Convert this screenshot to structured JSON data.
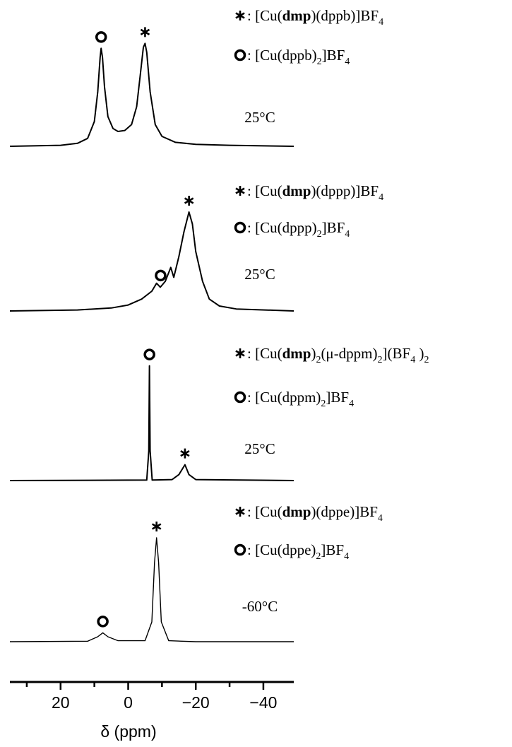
{
  "chart_data": {
    "type": "line",
    "xlabel": "δ (ppm)",
    "xlim": [
      35,
      -49
    ],
    "xticks": [
      20,
      0,
      {
        "value": -20,
        "label": "−20"
      },
      {
        "value": -40,
        "label": "−40"
      }
    ],
    "xminor_ticks": [
      30,
      10,
      -10,
      -30
    ],
    "color": "#000000",
    "series": [
      {
        "temperature": "25°C",
        "x": [
          35,
          20,
          15,
          12,
          10,
          9,
          8.3,
          8,
          7.6,
          7,
          6,
          4.5,
          3,
          1,
          -1,
          -2.5,
          -3.5,
          -4.5,
          -5,
          -5.5,
          -6.5,
          -8,
          -10,
          -14,
          -20,
          -30,
          -49
        ],
        "values": [
          0,
          1,
          3,
          8,
          25,
          55,
          90,
          99,
          90,
          60,
          30,
          18,
          15,
          16,
          22,
          40,
          70,
          100,
          104,
          95,
          55,
          22,
          10,
          4,
          2,
          1,
          0
        ],
        "species": [
          {
            "marker": "asterisk",
            "peak_x": -5,
            "label": [
              {
                "t": ": [Cu("
              },
              {
                "t": "dmp",
                "s": "b"
              },
              {
                "t": ")(dppb)]BF"
              },
              {
                "t": "4",
                "s": "sub"
              }
            ]
          },
          {
            "marker": "circle",
            "peak_x": 8,
            "label": [
              {
                "t": ": [Cu(dppb)"
              },
              {
                "t": "2",
                "s": "sub"
              },
              {
                "t": "]BF"
              },
              {
                "t": "4",
                "s": "sub"
              }
            ]
          }
        ]
      },
      {
        "temperature": "25°C",
        "x": [
          35,
          15,
          5,
          0,
          -4,
          -7,
          -8.4,
          -9.5,
          -11,
          -12.6,
          -13.5,
          -15,
          -16.5,
          -18,
          -19,
          -20,
          -22,
          -24,
          -27,
          -32,
          -49
        ],
        "values": [
          0,
          1,
          3,
          6,
          12,
          20,
          28,
          24,
          30,
          44,
          34,
          55,
          80,
          100,
          88,
          60,
          30,
          12,
          5,
          2,
          0
        ],
        "species": [
          {
            "marker": "asterisk",
            "peak_x": -18,
            "label": [
              {
                "t": ": [Cu("
              },
              {
                "t": "dmp",
                "s": "b"
              },
              {
                "t": ")(dppp)]BF"
              },
              {
                "t": "4",
                "s": "sub"
              }
            ]
          },
          {
            "marker": "circle",
            "peak_x": -9.6,
            "label": [
              {
                "t": ": [Cu(dppp)"
              },
              {
                "t": "2",
                "s": "sub"
              },
              {
                "t": "]BF"
              },
              {
                "t": "4",
                "s": "sub"
              }
            ]
          }
        ]
      },
      {
        "temperature": "25°C",
        "x": [
          35,
          -5.5,
          -6.1,
          -6.3,
          -6.5,
          -7.1,
          -13,
          -15,
          -16.8,
          -18,
          -20,
          -49
        ],
        "values": [
          0,
          0.5,
          30,
          116,
          30,
          0.5,
          1,
          6,
          16,
          6,
          1,
          0
        ],
        "species": [
          {
            "marker": "asterisk",
            "peak_x": -16.8,
            "label": [
              {
                "t": ": [Cu("
              },
              {
                "t": "dmp",
                "s": "b"
              },
              {
                "t": ")"
              },
              {
                "t": "2",
                "s": "sub"
              },
              {
                "t": "(μ-dppm)"
              },
              {
                "t": "2",
                "s": "sub"
              },
              {
                "t": "](BF"
              },
              {
                "t": "4",
                "s": "sub"
              },
              {
                "t": " )"
              },
              {
                "t": "2",
                "s": "sub"
              }
            ]
          },
          {
            "marker": "circle",
            "peak_x": -6.3,
            "label": [
              {
                "t": ": [Cu(dppm)"
              },
              {
                "t": "2",
                "s": "sub"
              },
              {
                "t": "]BF"
              },
              {
                "t": "4",
                "s": "sub"
              }
            ]
          }
        ]
      },
      {
        "temperature": "-60°C",
        "x": [
          35,
          12,
          9,
          7.5,
          6,
          3,
          -5,
          -7,
          -7.8,
          -8.4,
          -9,
          -9.8,
          -12,
          -20,
          -49
        ],
        "values": [
          0,
          0.5,
          5,
          9,
          5,
          1,
          1,
          20,
          80,
          105,
          80,
          20,
          1,
          0,
          0
        ],
        "species": [
          {
            "marker": "asterisk",
            "peak_x": -8.4,
            "label": [
              {
                "t": ": [Cu("
              },
              {
                "t": "dmp",
                "s": "b"
              },
              {
                "t": ")(dppe)]BF"
              },
              {
                "t": "4",
                "s": "sub"
              }
            ]
          },
          {
            "marker": "circle",
            "peak_x": 7.5,
            "label": [
              {
                "t": ": [Cu(dppe)"
              },
              {
                "t": "2",
                "s": "sub"
              },
              {
                "t": "]BF"
              },
              {
                "t": "4",
                "s": "sub"
              }
            ]
          }
        ]
      }
    ]
  }
}
